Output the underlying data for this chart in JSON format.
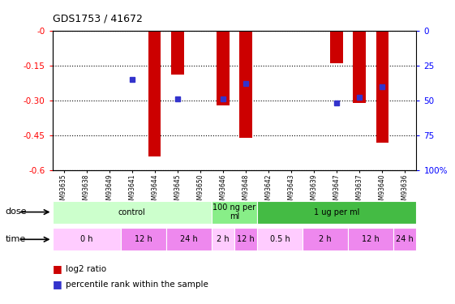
{
  "title": "GDS1753 / 41672",
  "samples": [
    "GSM93635",
    "GSM93638",
    "GSM93649",
    "GSM93641",
    "GSM93644",
    "GSM93645",
    "GSM93650",
    "GSM93646",
    "GSM93648",
    "GSM93642",
    "GSM93643",
    "GSM93639",
    "GSM93647",
    "GSM93637",
    "GSM93640",
    "GSM93636"
  ],
  "log2_ratio": [
    0,
    0,
    0,
    0,
    -0.54,
    -0.19,
    0,
    -0.32,
    -0.46,
    0,
    0,
    0,
    -0.14,
    -0.31,
    -0.48,
    0
  ],
  "percentile": [
    null,
    null,
    null,
    35,
    null,
    49,
    null,
    49,
    38,
    null,
    null,
    null,
    52,
    48,
    40,
    null
  ],
  "ylim_left": [
    -0.6,
    0.0
  ],
  "yticks_left": [
    0,
    -0.15,
    -0.3,
    -0.45,
    -0.6
  ],
  "ytick_left_labels": [
    "-0",
    "-0.15",
    "-0.30",
    "-0.45",
    "-0.6"
  ],
  "yticks_right_vals": [
    100,
    75,
    50,
    25,
    0
  ],
  "ytick_right_labels": [
    "100%",
    "75",
    "50",
    "25",
    "0"
  ],
  "bar_color": "#cc0000",
  "dot_color": "#3333cc",
  "dose_groups": [
    {
      "label": "control",
      "start": 0,
      "end": 7,
      "color": "#ccffcc"
    },
    {
      "label": "100 ng per\nml",
      "start": 7,
      "end": 9,
      "color": "#88ee88"
    },
    {
      "label": "1 ug per ml",
      "start": 9,
      "end": 16,
      "color": "#44bb44"
    }
  ],
  "time_groups": [
    {
      "label": "0 h",
      "start": 0,
      "end": 3,
      "color": "#ffccff"
    },
    {
      "label": "12 h",
      "start": 3,
      "end": 5,
      "color": "#ee88ee"
    },
    {
      "label": "24 h",
      "start": 5,
      "end": 7,
      "color": "#ee88ee"
    },
    {
      "label": "2 h",
      "start": 7,
      "end": 8,
      "color": "#ffccff"
    },
    {
      "label": "12 h",
      "start": 8,
      "end": 9,
      "color": "#ee88ee"
    },
    {
      "label": "0.5 h",
      "start": 9,
      "end": 11,
      "color": "#ffccff"
    },
    {
      "label": "2 h",
      "start": 11,
      "end": 13,
      "color": "#ee88ee"
    },
    {
      "label": "12 h",
      "start": 13,
      "end": 15,
      "color": "#ee88ee"
    },
    {
      "label": "24 h",
      "start": 15,
      "end": 16,
      "color": "#ee88ee"
    }
  ],
  "legend_red": "log2 ratio",
  "legend_blue": "percentile rank within the sample",
  "dose_label": "dose",
  "time_label": "time",
  "bg_color": "#ffffff"
}
